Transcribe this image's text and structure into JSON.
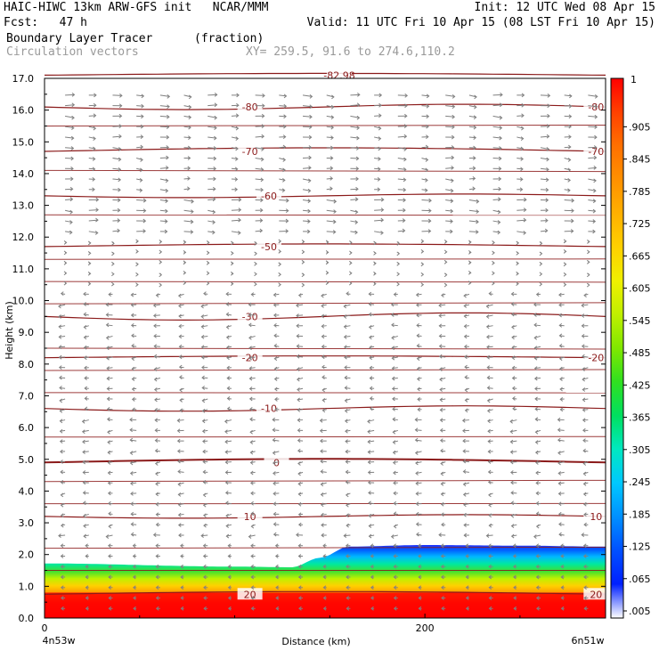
{
  "header": {
    "line1_left": "HAIC-HIWC 13km ARW-GFS init   NCAR/MMM",
    "line1_right": "Init: 12 UTC Wed 08 Apr 15",
    "line2_left": "Fcst:   47 h",
    "line2_right": "Valid: 11 UTC Fri 10 Apr 15 (08 LST Fri 10 Apr 15)",
    "field_name": "Boundary Layer Tracer",
    "field_units": "(fraction)",
    "vector_label": "Circulation vectors",
    "xy_label": "XY= 259.5, 91.6 to 274.6,110.2"
  },
  "chart_data": {
    "type": "heatmap",
    "title": "Boundary Layer Tracer",
    "xlabel": "Distance (km)",
    "ylabel": "Height (km)",
    "xlim": [
      0,
      295
    ],
    "ylim": [
      0,
      17
    ],
    "x_ticks": [
      0,
      200
    ],
    "x_end_labels": [
      "4n53w",
      "6n51w"
    ],
    "y_ticks": [
      "0.0",
      "1.0",
      "2.0",
      "3.0",
      "4.0",
      "5.0",
      "6.0",
      "7.0",
      "8.0",
      "9.0",
      "10.0",
      "11.0",
      "12.0",
      "13.0",
      "14.0",
      "15.0",
      "16.0",
      "17.0"
    ],
    "colorbar": {
      "labels": [
        ".005",
        ".065",
        ".125",
        ".185",
        ".245",
        ".305",
        ".365",
        ".425",
        ".485",
        ".545",
        ".605",
        ".665",
        ".725",
        ".785",
        ".845",
        ".905"
      ],
      "top_label": "1",
      "colors": [
        "#ffffff",
        "#0020ff",
        "#0050ff",
        "#0090ff",
        "#00c8ff",
        "#00e8c0",
        "#00e060",
        "#30e020",
        "#80e800",
        "#c0f000",
        "#f0f000",
        "#ffd000",
        "#ffb000",
        "#ff9000",
        "#ff7000",
        "#ff4000",
        "#ff0000"
      ]
    },
    "tracer_layer": {
      "x_km": [
        0,
        100,
        130,
        145,
        160,
        200,
        250,
        295
      ],
      "top_km": [
        1.72,
        1.62,
        1.6,
        1.9,
        2.25,
        2.3,
        2.28,
        2.25
      ]
    },
    "contour_color": "#8b1a1a",
    "temperature_contours": [
      {
        "label": "-82.98",
        "y_km": 17.1
      },
      {
        "label": "-80",
        "y_km": 16.1
      },
      {
        "label": "-70",
        "y_km": 14.7
      },
      {
        "label": "-60",
        "y_km": 13.3
      },
      {
        "label": "-50",
        "y_km": 11.7
      },
      {
        "label": "-30",
        "y_km": 9.5
      },
      {
        "label": "-20",
        "y_km": 8.2
      },
      {
        "label": "-10",
        "y_km": 6.6
      },
      {
        "label": "0",
        "y_km": 4.9
      },
      {
        "label": "10",
        "y_km": 3.2
      },
      {
        "label": "20",
        "y_km": 0.75
      }
    ],
    "contour_label_positions_km": [
      {
        "label": "-82.98",
        "x": 155
      },
      {
        "label": "-80",
        "x": 108
      },
      {
        "label": "-80",
        "x": 298
      },
      {
        "label": "-70",
        "x": 108
      },
      {
        "label": "-70",
        "x": 298
      },
      {
        "label": "-60",
        "x": 118
      },
      {
        "label": "-50",
        "x": 118
      },
      {
        "label": "-30",
        "x": 108
      },
      {
        "label": "-20",
        "x": 108
      },
      {
        "label": "-20",
        "x": 298
      },
      {
        "label": "-10",
        "x": 118
      },
      {
        "label": "0",
        "x": 122
      },
      {
        "label": "10",
        "x": 108
      },
      {
        "label": "10",
        "x": 305
      },
      {
        "label": "20",
        "x": 108
      },
      {
        "label": "20",
        "x": 298
      }
    ],
    "vector_color": "#808080",
    "vectors_description": "circulation vectors: westerly aloft, easterly in mid/lower levels"
  }
}
